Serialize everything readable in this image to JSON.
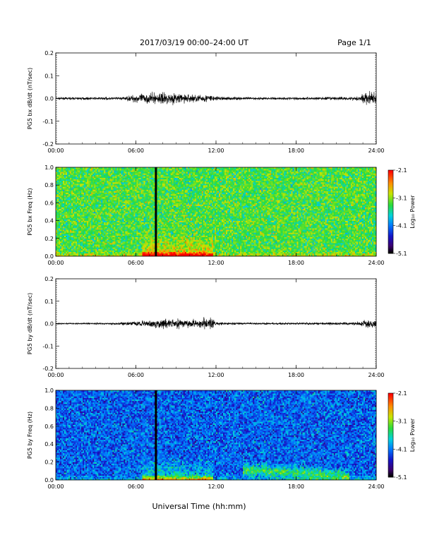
{
  "header": {
    "date_range": "2017/03/19  00:00–24:00 UT",
    "page": "Page 1/1"
  },
  "xlabel": "Universal Time (hh:mm)",
  "chart_data": [
    {
      "type": "line",
      "ylabel": "PG5 bx dB/dt (nT/sec)",
      "x_ticks": [
        "00:00",
        "06:00",
        "12:00",
        "18:00",
        "24:00"
      ],
      "xlim": [
        0,
        24
      ],
      "ylim": [
        -0.2,
        0.2
      ],
      "y_ticks": [
        "0.2",
        "0.1",
        "0.0",
        "-0.1",
        "-0.2"
      ],
      "amplitude_envelope": {
        "x": [
          0,
          4,
          5,
          6,
          7,
          7.5,
          8,
          9,
          10,
          11,
          11.5,
          12,
          14,
          18,
          22,
          22.8,
          23,
          23.5,
          24
        ],
        "y": [
          0.006,
          0.008,
          0.008,
          0.025,
          0.03,
          0.03,
          0.035,
          0.03,
          0.025,
          0.02,
          0.025,
          0.012,
          0.008,
          0.008,
          0.01,
          0.015,
          0.03,
          0.04,
          0.03
        ]
      }
    },
    {
      "type": "heatmap",
      "ylabel": "PG5 bx Freq (Hz)",
      "x_ticks": [
        "00:00",
        "06:00",
        "12:00",
        "18:00",
        "24:00"
      ],
      "xlim": [
        0,
        24
      ],
      "ylim": [
        0,
        1
      ],
      "y_ticks": [
        "1.0",
        "0.8",
        "0.6",
        "0.4",
        "0.2",
        "0.0"
      ],
      "colorbar": {
        "label": "Log₁₀ Power",
        "ticks": [
          "-2.1",
          "-3.1",
          "-4.1",
          "-5.1"
        ],
        "range": [
          -5.1,
          -2.1
        ]
      },
      "data_gap_at": 7.5,
      "mean_log_power": -3.3
    },
    {
      "type": "line",
      "ylabel": "PG5 by dB/dt (nT/sec)",
      "x_ticks": [
        "00:00",
        "06:00",
        "12:00",
        "18:00",
        "24:00"
      ],
      "xlim": [
        0,
        24
      ],
      "ylim": [
        -0.2,
        0.2
      ],
      "y_ticks": [
        "0.2",
        "0.1",
        "0.0",
        "-0.1",
        "-0.2"
      ],
      "amplitude_envelope": {
        "x": [
          0,
          4,
          5,
          6,
          7,
          7.5,
          8,
          9,
          10,
          11,
          11.5,
          12,
          14,
          18,
          22,
          22.8,
          23,
          23.5,
          24
        ],
        "y": [
          0.004,
          0.006,
          0.008,
          0.015,
          0.02,
          0.025,
          0.03,
          0.025,
          0.02,
          0.025,
          0.04,
          0.01,
          0.006,
          0.006,
          0.008,
          0.012,
          0.02,
          0.025,
          0.02
        ]
      }
    },
    {
      "type": "heatmap",
      "ylabel": "PG5 by Freq (Hz)",
      "x_ticks": [
        "00:00",
        "06:00",
        "12:00",
        "18:00",
        "24:00"
      ],
      "xlim": [
        0,
        24
      ],
      "ylim": [
        0,
        1
      ],
      "y_ticks": [
        "1.0",
        "0.8",
        "0.6",
        "0.4",
        "0.2",
        "0.0"
      ],
      "colorbar": {
        "label": "Log₁₀ Power",
        "ticks": [
          "-2.1",
          "-3.1",
          "-4.1",
          "-5.1"
        ],
        "range": [
          -5.1,
          -2.1
        ]
      },
      "data_gap_at": 7.5,
      "mean_log_power": -4.2
    }
  ]
}
